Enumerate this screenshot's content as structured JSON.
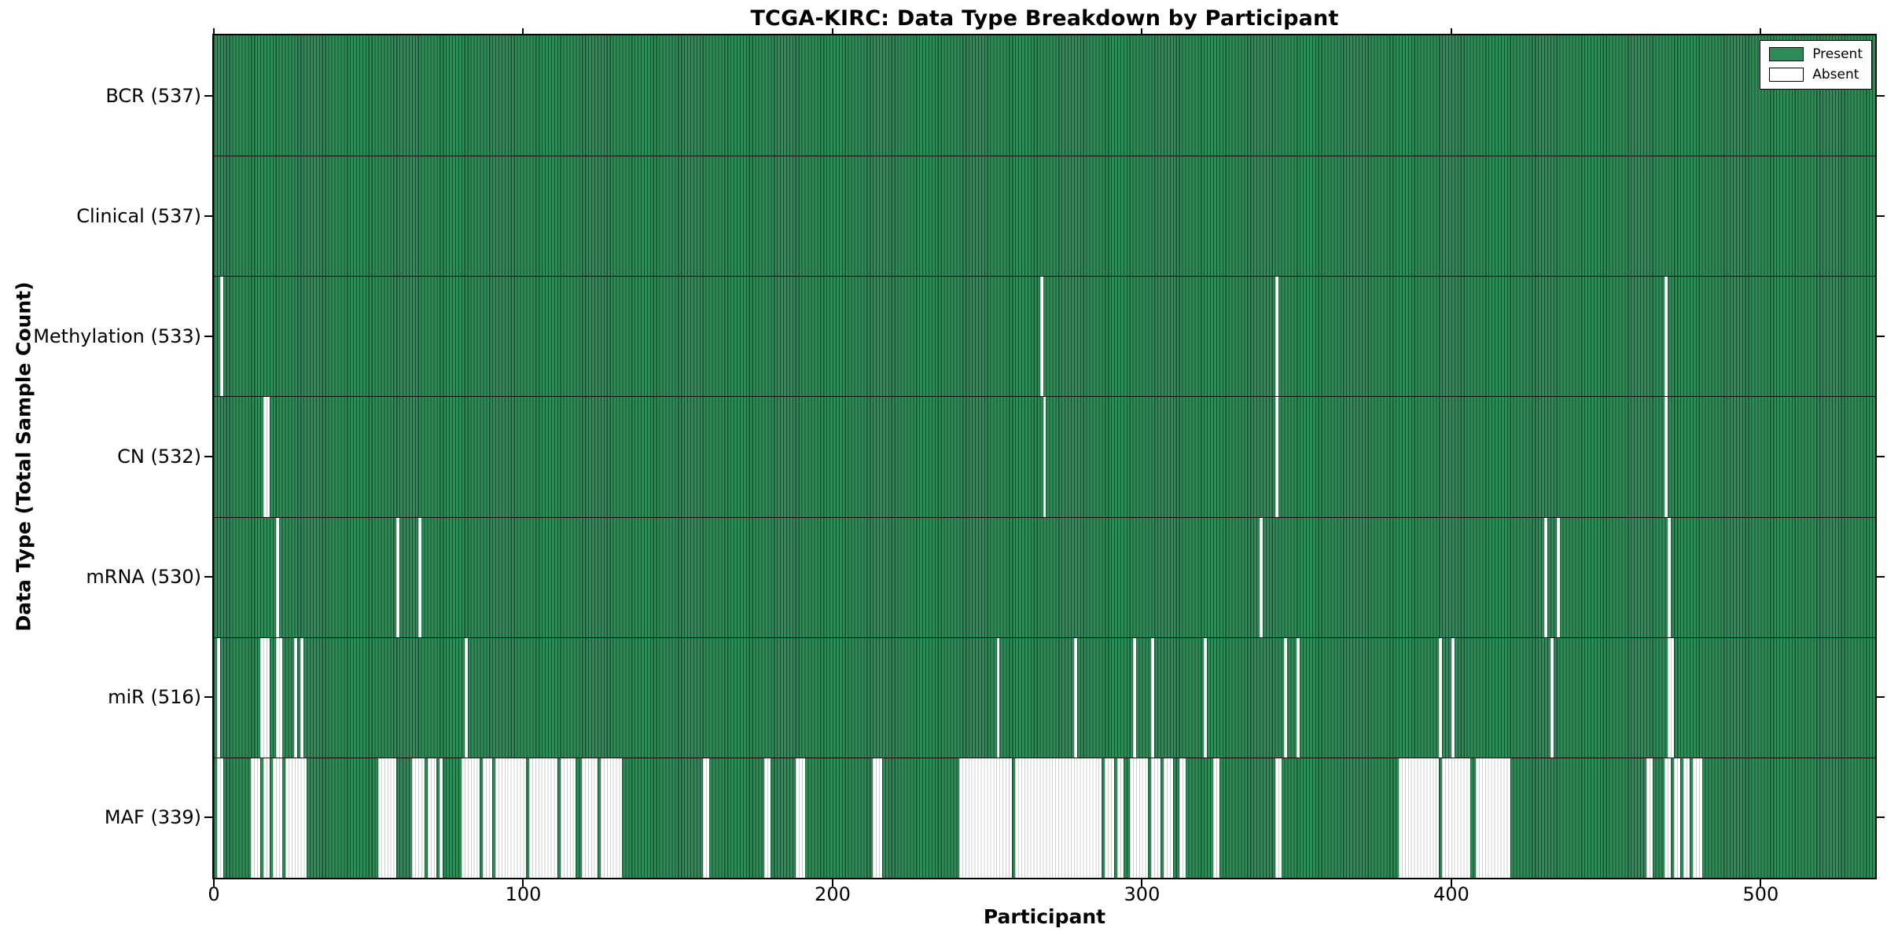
{
  "title": "TCGA-KIRC: Data Type Breakdown by Participant",
  "colors": {
    "present": "#2e8b57",
    "absent": "#ffffff",
    "bar_edge": "rgba(0,0,0,0.45)",
    "absent_edge": "rgba(0,0,0,0.18)",
    "axis": "#000000"
  },
  "chart_data": {
    "type": "heatmap",
    "title": "TCGA-KIRC: Data Type Breakdown by Participant",
    "xlabel": "Participant",
    "ylabel": "Data Type (Total Sample Count)",
    "x_ticks": [
      0,
      100,
      200,
      300,
      400,
      500
    ],
    "x_range": [
      0,
      537
    ],
    "n_participants": 537,
    "grid": false,
    "legend_position": "upper right",
    "legend": [
      {
        "label": "Present",
        "color": "#2e8b57"
      },
      {
        "label": "Absent",
        "color": "#ffffff"
      }
    ],
    "rows": [
      {
        "name": "BCR",
        "total": 537,
        "label": "BCR (537)",
        "absent_ranges": []
      },
      {
        "name": "Clinical",
        "total": 537,
        "label": "Clinical (537)",
        "absent_ranges": []
      },
      {
        "name": "Methylation",
        "total": 533,
        "label": "Methylation (533)",
        "absent_ranges": [
          [
            2,
            2
          ],
          [
            267,
            267
          ],
          [
            343,
            343
          ],
          [
            469,
            469
          ]
        ]
      },
      {
        "name": "CN",
        "total": 532,
        "label": "CN (532)",
        "absent_ranges": [
          [
            16,
            17
          ],
          [
            268,
            268
          ],
          [
            343,
            343
          ],
          [
            469,
            469
          ]
        ]
      },
      {
        "name": "mRNA",
        "total": 530,
        "label": "mRNA (530)",
        "absent_ranges": [
          [
            20,
            20
          ],
          [
            59,
            59
          ],
          [
            66,
            66
          ],
          [
            338,
            338
          ],
          [
            430,
            430
          ],
          [
            434,
            434
          ],
          [
            470,
            470
          ]
        ]
      },
      {
        "name": "miR",
        "total": 516,
        "label": "miR (516)",
        "absent_ranges": [
          [
            1,
            1
          ],
          [
            15,
            17
          ],
          [
            20,
            21
          ],
          [
            26,
            26
          ],
          [
            28,
            28
          ],
          [
            81,
            81
          ],
          [
            253,
            253
          ],
          [
            278,
            278
          ],
          [
            297,
            297
          ],
          [
            303,
            303
          ],
          [
            320,
            320
          ],
          [
            346,
            346
          ],
          [
            350,
            350
          ],
          [
            396,
            396
          ],
          [
            400,
            400
          ],
          [
            432,
            432
          ],
          [
            470,
            471
          ]
        ]
      },
      {
        "name": "MAF",
        "total": 339,
        "label": "MAF (339)",
        "absent_ranges": [
          [
            1,
            2
          ],
          [
            12,
            14
          ],
          [
            16,
            17
          ],
          [
            19,
            21
          ],
          [
            23,
            29
          ],
          [
            53,
            58
          ],
          [
            64,
            67
          ],
          [
            69,
            71
          ],
          [
            73,
            73
          ],
          [
            80,
            85
          ],
          [
            87,
            89
          ],
          [
            91,
            100
          ],
          [
            102,
            110
          ],
          [
            112,
            116
          ],
          [
            119,
            123
          ],
          [
            125,
            131
          ],
          [
            158,
            159
          ],
          [
            178,
            179
          ],
          [
            188,
            190
          ],
          [
            213,
            215
          ],
          [
            241,
            257
          ],
          [
            259,
            286
          ],
          [
            288,
            290
          ],
          [
            292,
            293
          ],
          [
            296,
            301
          ],
          [
            303,
            305
          ],
          [
            307,
            309
          ],
          [
            312,
            313
          ],
          [
            323,
            324
          ],
          [
            343,
            344
          ],
          [
            383,
            395
          ],
          [
            397,
            405
          ],
          [
            408,
            418
          ],
          [
            463,
            464
          ],
          [
            469,
            470
          ],
          [
            472,
            473
          ],
          [
            475,
            476
          ],
          [
            478,
            480
          ]
        ]
      }
    ]
  }
}
